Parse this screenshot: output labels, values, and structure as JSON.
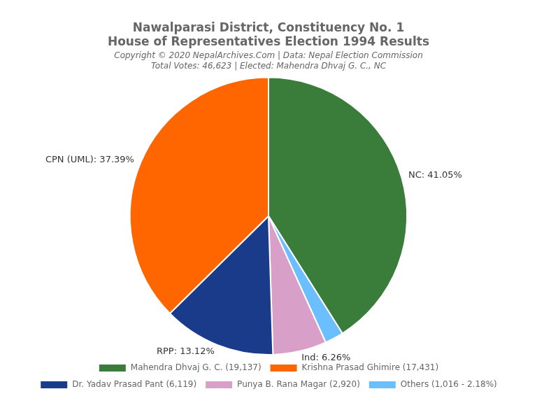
{
  "chart_data": {
    "type": "pie",
    "title": [
      "Nawalparasi District, Constituency No. 1",
      "House of Representatives Election 1994 Results"
    ],
    "subtitle": [
      "Copyright © 2020 NepalArchives.Com | Data: Nepal Election Commission",
      "Total Votes: 46,623 | Elected: Mahendra Dhvaj G. C., NC"
    ],
    "categories": [
      "Mahendra Dhvaj G. C. (19,137)",
      "Others (1,016 - 2.18%)",
      "Punya B. Rana Magar (2,920)",
      "Dr. Yadav Prasad Pant (6,119)",
      "Krishna Prasad Ghimire (17,431)"
    ],
    "values": [
      41.05,
      2.18,
      6.26,
      13.12,
      37.39
    ],
    "value_labels": [
      "NC: 41.05%",
      null,
      "Ind: 6.26%",
      "RPP: 13.12%",
      "CPN (UML): 37.39%"
    ],
    "colors": [
      "#3a7d3a",
      "#6BBFFF",
      "#D8A0C8",
      "#1a3a8a",
      "#FF6600"
    ],
    "data_labels": true,
    "legend": "bottom"
  }
}
